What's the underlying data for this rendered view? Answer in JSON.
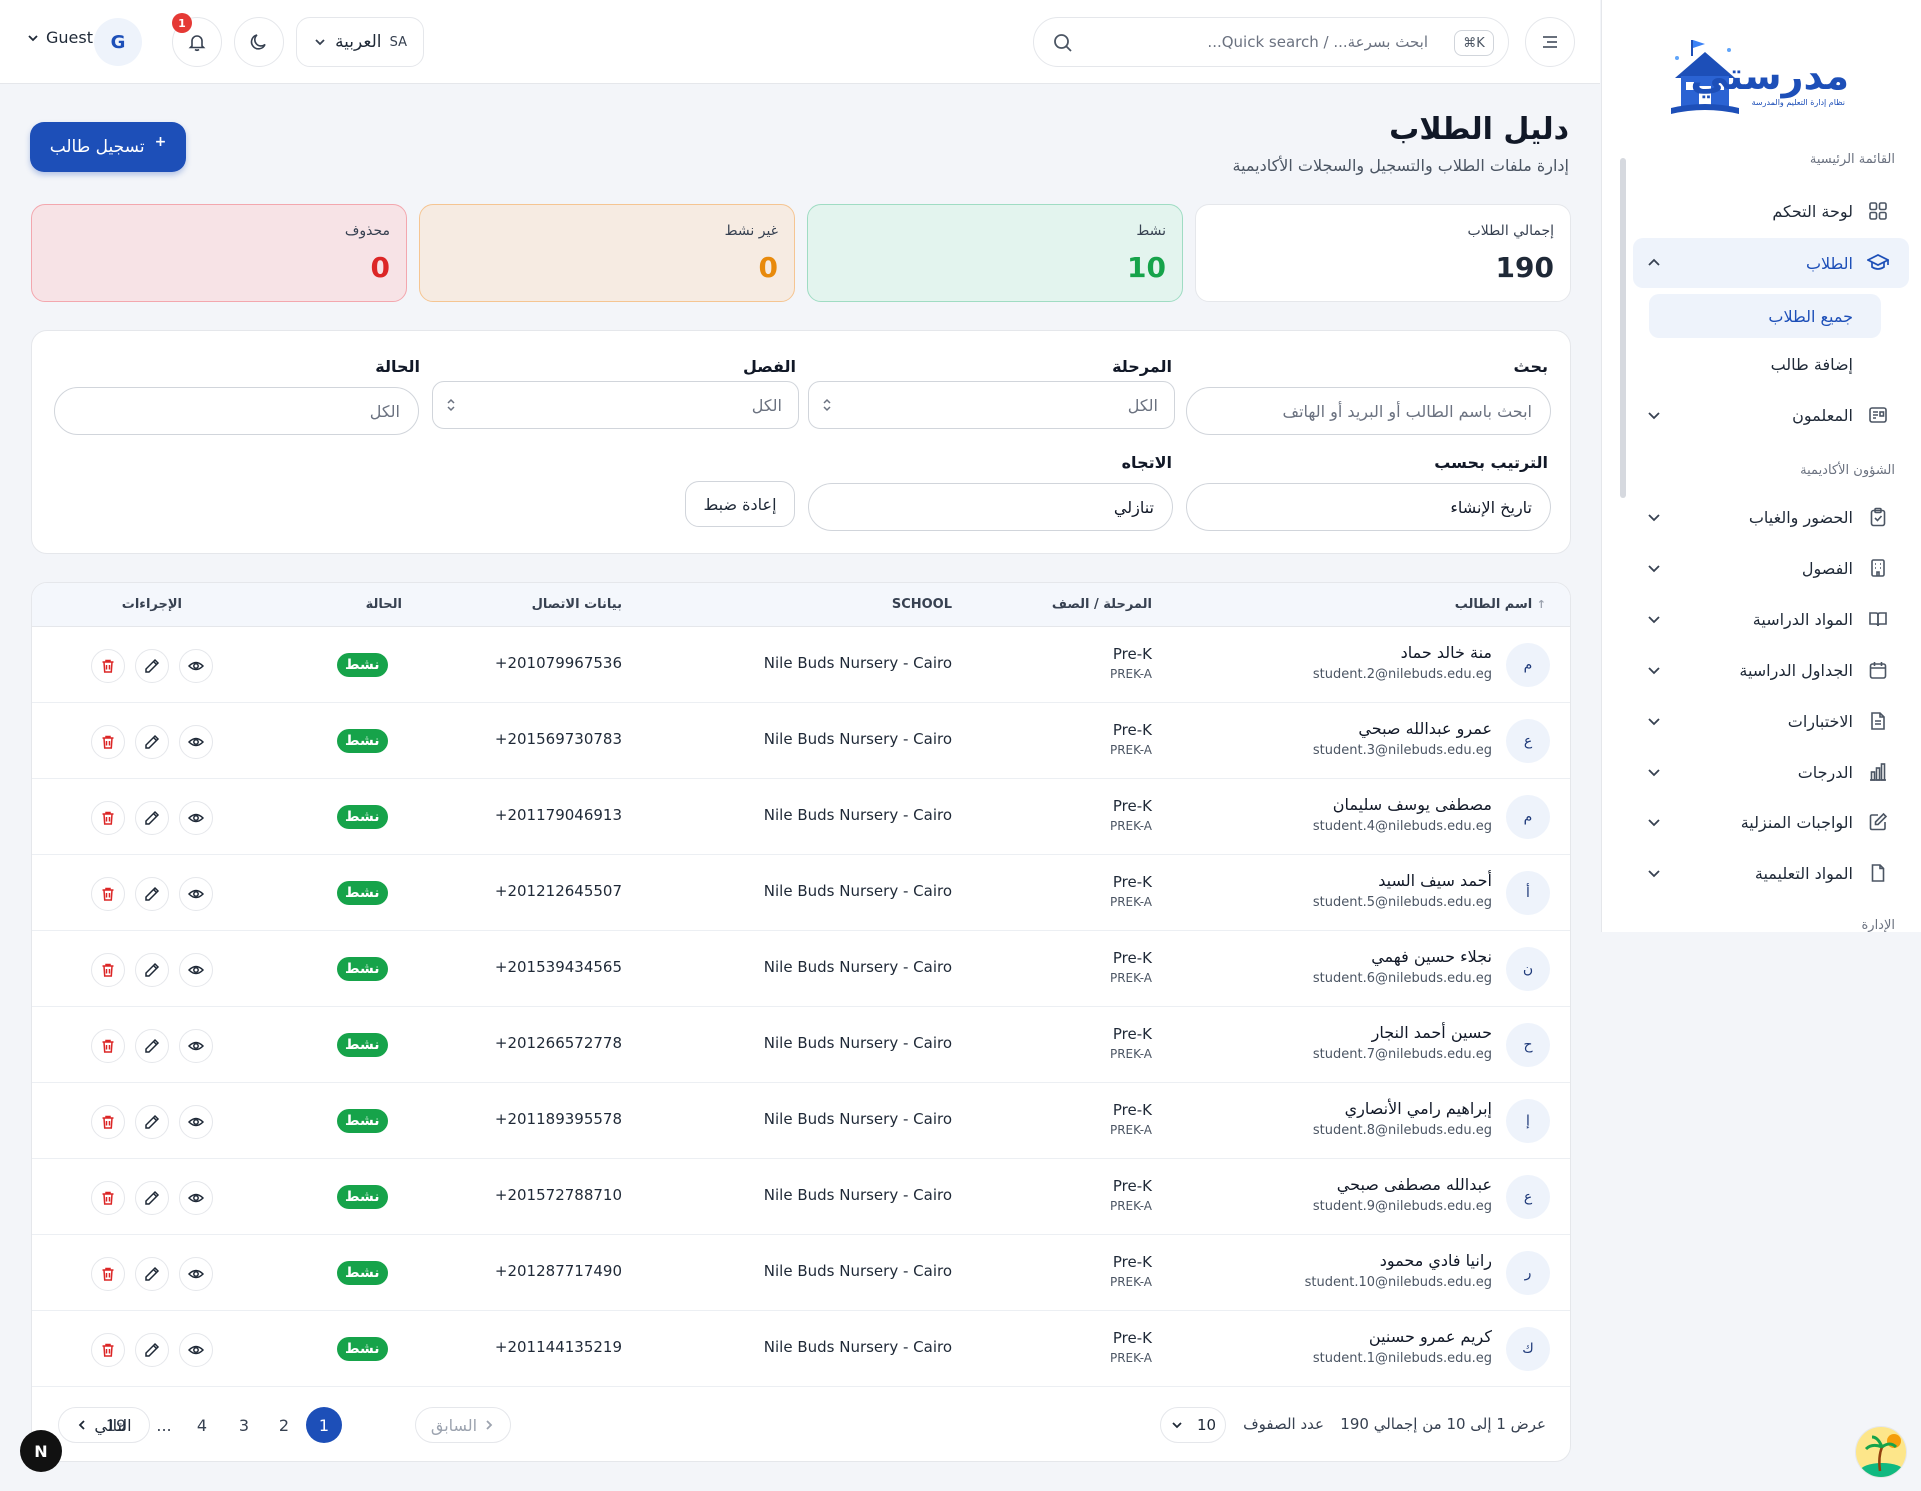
{
  "sidebar": {
    "logo_text": "مدرستي",
    "logo_tagline": "نظام إدارة التعليم والمدرسة",
    "sections": {
      "main": "القائمة الرئيسية",
      "academic": "الشؤون الأكاديمية",
      "admin": "الإدارة"
    },
    "items": {
      "dashboard": "لوحة التحكم",
      "students": "الطلاب",
      "all_students": "جميع الطلاب",
      "add_student": "إضافة طالب",
      "teachers": "المعلمون",
      "attendance": "الحضور والغياب",
      "classes": "الفصول",
      "subjects": "المواد الدراسية",
      "schedules": "الجداول الدراسية",
      "exams": "الاختبارات",
      "grades": "الدرجات",
      "homework": "الواجبات المنزلية",
      "materials": "المواد التعليمية"
    }
  },
  "topbar": {
    "search_placeholder": "ابحث بسرعة... / Quick search...",
    "search_shortcut": "⌘K",
    "lang_code": "SA",
    "lang_name": "العربية",
    "notif_count": "1",
    "avatar_initial": "G",
    "user_name": "Guest"
  },
  "header": {
    "title": "دليل الطلاب",
    "subtitle": "إدارة ملفات الطلاب والتسجيل والسجلات الأكاديمية",
    "register_label": "تسجيل طالب",
    "register_icon": "+"
  },
  "stats": {
    "total_label": "إجمالي الطلاب",
    "total_value": "190",
    "active_label": "نشط",
    "active_value": "10",
    "inactive_label": "غير نشط",
    "inactive_value": "0",
    "deleted_label": "محذوف",
    "deleted_value": "0"
  },
  "filters": {
    "search_label": "بحث",
    "search_placeholder": "ابحث باسم الطالب أو البريد أو الهاتف",
    "stage_label": "المرحلة",
    "stage_value": "الكل",
    "class_label": "الفصل",
    "class_value": "الكل",
    "status_label": "الحالة",
    "status_value": "الكل",
    "sort_label": "الترتيب بحسب",
    "sort_value": "تاريخ الإنشاء",
    "direction_label": "الاتجاه",
    "direction_value": "تنازلي",
    "reset_label": "إعادة ضبط"
  },
  "table": {
    "columns": {
      "name": "اسم الطالب",
      "grade": "المرحلة / الصف",
      "school": "SCHOOL",
      "contact": "بيانات الاتصال",
      "status": "الحالة",
      "actions": "الإجراءات"
    },
    "rows": [
      {
        "initial": "م",
        "name": "منة خالد حماد",
        "email": "student.2@nilebuds.edu.eg",
        "grade": "Pre-K",
        "section": "PREK-A",
        "school": "Nile Buds Nursery - Cairo",
        "phone": "+201079967536",
        "status": "نشط"
      },
      {
        "initial": "ع",
        "name": "عمرو عبدالله صبحي",
        "email": "student.3@nilebuds.edu.eg",
        "grade": "Pre-K",
        "section": "PREK-A",
        "school": "Nile Buds Nursery - Cairo",
        "phone": "+201569730783",
        "status": "نشط"
      },
      {
        "initial": "م",
        "name": "مصطفى يوسف سليمان",
        "email": "student.4@nilebuds.edu.eg",
        "grade": "Pre-K",
        "section": "PREK-A",
        "school": "Nile Buds Nursery - Cairo",
        "phone": "+201179046913",
        "status": "نشط"
      },
      {
        "initial": "أ",
        "name": "أحمد سيف السيد",
        "email": "student.5@nilebuds.edu.eg",
        "grade": "Pre-K",
        "section": "PREK-A",
        "school": "Nile Buds Nursery - Cairo",
        "phone": "+201212645507",
        "status": "نشط"
      },
      {
        "initial": "ن",
        "name": "نجلاء حسين فهمي",
        "email": "student.6@nilebuds.edu.eg",
        "grade": "Pre-K",
        "section": "PREK-A",
        "school": "Nile Buds Nursery - Cairo",
        "phone": "+201539434565",
        "status": "نشط"
      },
      {
        "initial": "ح",
        "name": "حسين أحمد النجار",
        "email": "student.7@nilebuds.edu.eg",
        "grade": "Pre-K",
        "section": "PREK-A",
        "school": "Nile Buds Nursery - Cairo",
        "phone": "+201266572778",
        "status": "نشط"
      },
      {
        "initial": "إ",
        "name": "إبراهيم رامي الأنصاري",
        "email": "student.8@nilebuds.edu.eg",
        "grade": "Pre-K",
        "section": "PREK-A",
        "school": "Nile Buds Nursery - Cairo",
        "phone": "+201189395578",
        "status": "نشط"
      },
      {
        "initial": "ع",
        "name": "عبدالله مصطفى صبحي",
        "email": "student.9@nilebuds.edu.eg",
        "grade": "Pre-K",
        "section": "PREK-A",
        "school": "Nile Buds Nursery - Cairo",
        "phone": "+201572788710",
        "status": "نشط"
      },
      {
        "initial": "ر",
        "name": "رانيا فادي محمود",
        "email": "student.10@nilebuds.edu.eg",
        "grade": "Pre-K",
        "section": "PREK-A",
        "school": "Nile Buds Nursery - Cairo",
        "phone": "+201287717490",
        "status": "نشط"
      },
      {
        "initial": "ك",
        "name": "كريم عمرو حسنين",
        "email": "student.1@nilebuds.edu.eg",
        "grade": "Pre-K",
        "section": "PREK-A",
        "school": "Nile Buds Nursery - Cairo",
        "phone": "+201144135219",
        "status": "نشط"
      }
    ]
  },
  "pagination": {
    "info": "عرض 1 إلى 10 من إجمالي 190",
    "rows_label": "عدد الصفوف",
    "rows_value": "10",
    "prev_label": "السابق",
    "next_label": "التالي",
    "pages": [
      "1",
      "2",
      "3",
      "4",
      "...",
      "19"
    ],
    "current": "1"
  },
  "fab_label": "N",
  "colors": {
    "primary": "#1d4fb8",
    "success": "#16a34a",
    "warning": "#e88a0c",
    "danger": "#dc2626"
  }
}
